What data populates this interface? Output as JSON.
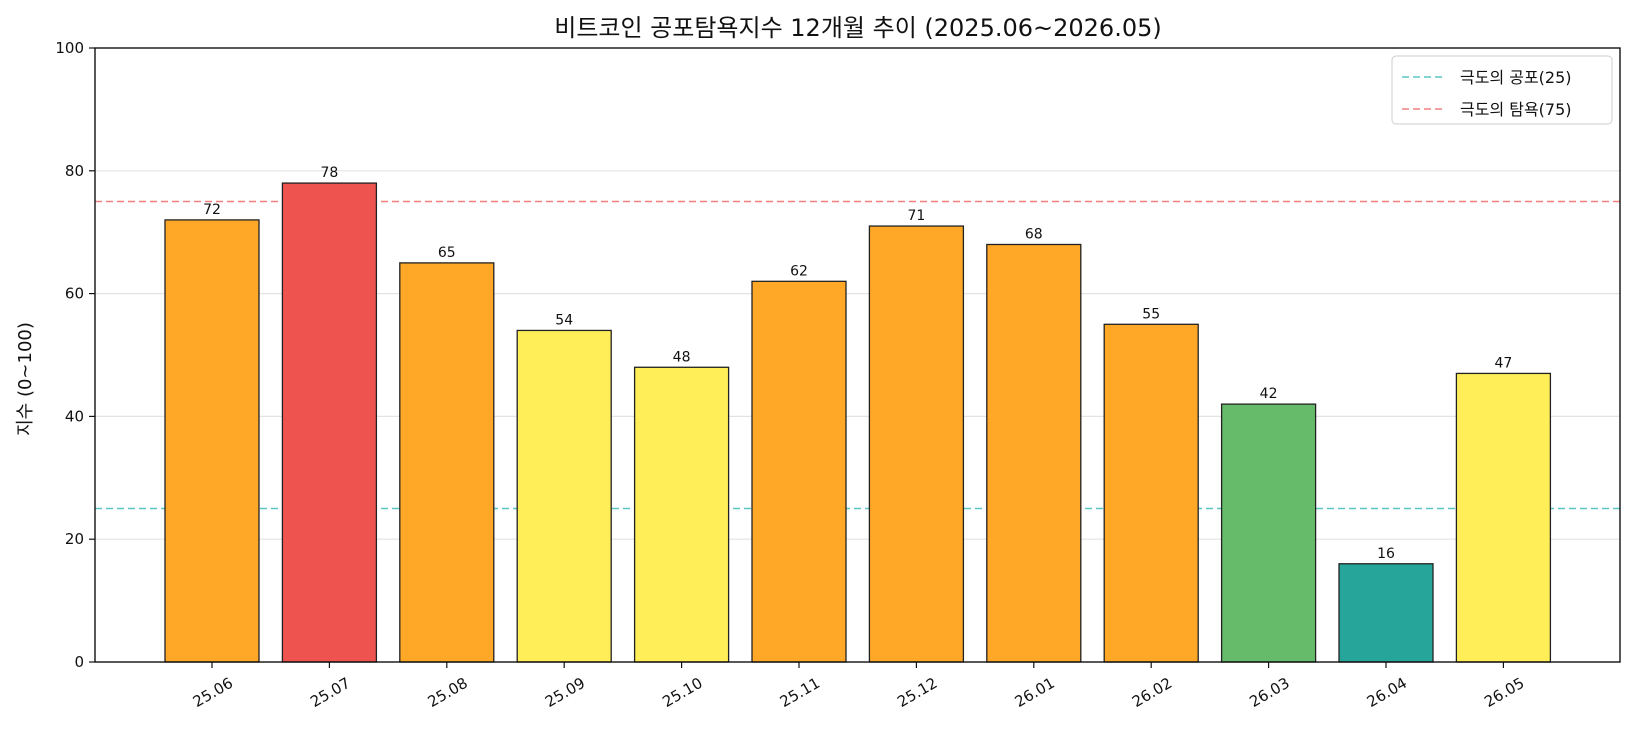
{
  "chart_data": {
    "type": "bar",
    "title": "비트코인 공포탐욕지수 12개월 추이 (2025.06~2026.05)",
    "xlabel": "",
    "ylabel": "지수 (0~100)",
    "ylim": [
      0,
      100
    ],
    "yticks": [
      0,
      20,
      40,
      60,
      80,
      100
    ],
    "grid": "y",
    "legend_position": "top-right",
    "categories": [
      "25.06",
      "25.07",
      "25.08",
      "25.09",
      "25.10",
      "25.11",
      "25.12",
      "26.01",
      "26.02",
      "26.03",
      "26.04",
      "26.05"
    ],
    "values": [
      72,
      78,
      65,
      54,
      48,
      62,
      71,
      68,
      55,
      42,
      16,
      47
    ],
    "bar_colors": [
      "#ffa726",
      "#ef5350",
      "#ffa726",
      "#ffee58",
      "#ffee58",
      "#ffa726",
      "#ffa726",
      "#ffa726",
      "#ffa726",
      "#66bb6a",
      "#26a69a",
      "#ffee58"
    ],
    "bar_edge_color": "#222222",
    "reference_lines": [
      {
        "label": "극도의 공포(25)",
        "value": 25,
        "color": "#5bc6c6",
        "style": "dashed"
      },
      {
        "label": "극도의 탐욕(75)",
        "value": 75,
        "color": "#f08080",
        "style": "dashed"
      }
    ]
  }
}
